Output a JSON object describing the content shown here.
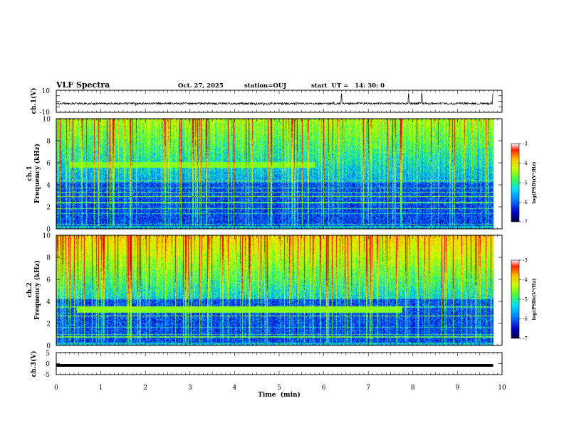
{
  "header": {
    "title": "VLF Spectra",
    "date": "Oct. 27, 2025",
    "station": "station=OUJ",
    "start": "start  UT =   14: 30: 0"
  },
  "colors": {
    "spectrum_scale": [
      "#0a0a60",
      "#0000c0",
      "#0060ff",
      "#00c8ff",
      "#40ff40",
      "#c8ff00",
      "#ffe000",
      "#ff8000",
      "#e00000"
    ],
    "trace": "#000000"
  },
  "chart_data": [
    {
      "type": "line",
      "name": "ch.1 waveform",
      "ylabel": "ch.1(V)",
      "ylim": [
        -10,
        10
      ],
      "yticks": [
        "10",
        "-10"
      ],
      "xlim": [
        0,
        10
      ],
      "baseline": -2,
      "series": [
        {
          "name": "ch.1",
          "description": "noisy trace near -2 V with spikes at ~6.4, 7.9, 8.2, 9.8 min",
          "spikes_min": [
            6.4,
            7.9,
            8.2,
            9.8
          ]
        }
      ]
    },
    {
      "type": "heatmap",
      "name": "ch.1 spectrogram",
      "ylabel": "ch.1\nFrequency  (kHz)",
      "ylim": [
        0,
        10
      ],
      "yticks": [
        "0",
        "2",
        "4",
        "6",
        "8",
        "10"
      ],
      "xlim": [
        0,
        9.8
      ],
      "colorbar": {
        "label": "log(PSD)(V²/Hz)",
        "ticks": [
          "-3",
          "-4",
          "-5",
          "-6",
          "-7"
        ],
        "range": [
          -7,
          -3
        ]
      },
      "features": {
        "band_khz": [
          5.6,
          6.1
        ],
        "band_min": [
          0.3,
          5.8
        ]
      }
    },
    {
      "type": "heatmap",
      "name": "ch.2 spectrogram",
      "ylabel": "ch.2\nFrequency  (kHz)",
      "ylim": [
        0,
        10
      ],
      "yticks": [
        "0",
        "2",
        "4",
        "6",
        "8",
        "10"
      ],
      "xlim": [
        0,
        9.8
      ],
      "colorbar": {
        "label": "log(PSD)(V²/Hz)",
        "ticks": [
          "-3",
          "-4",
          "-5",
          "-6",
          "-7"
        ],
        "range": [
          -7,
          -3
        ]
      },
      "features": {
        "band_khz": [
          3.0,
          3.6
        ],
        "band_min": [
          0.45,
          7.75
        ]
      }
    },
    {
      "type": "line",
      "name": "ch.3 waveform",
      "ylabel": "ch.3(V)",
      "ylim": [
        -5,
        5
      ],
      "yticks": [
        "5",
        "0",
        "-5"
      ],
      "xlim": [
        0,
        10
      ],
      "baseline": -0.8,
      "series": [
        {
          "name": "ch.3",
          "description": "flat thick line near -0.8 V from 0 to 9.8 min"
        }
      ]
    }
  ],
  "xaxis": {
    "label": "Time  (min)",
    "ticks": [
      "0",
      "1",
      "2",
      "3",
      "4",
      "5",
      "6",
      "7",
      "8",
      "9",
      "10"
    ],
    "range": [
      0,
      10
    ]
  }
}
